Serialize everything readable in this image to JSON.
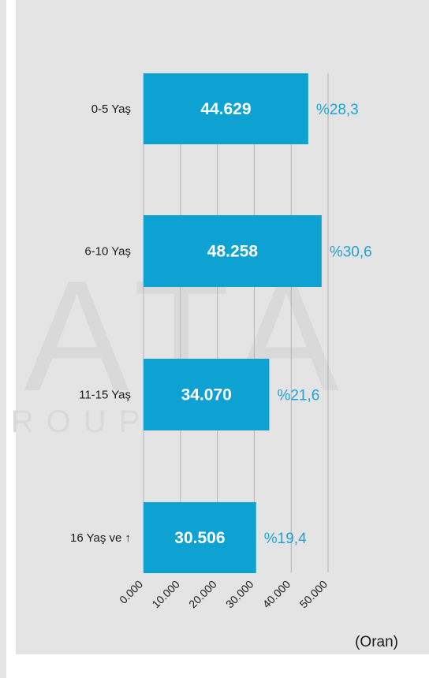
{
  "watermark": {
    "text_main": "ATA",
    "text_sub": "GROUP"
  },
  "colors": {
    "bar": "#0ea2d3",
    "percent_text": "#21a3d6",
    "grid": "#b4b4b4",
    "background": "#e4e4e4"
  },
  "chart_data": {
    "type": "bar",
    "orientation": "horizontal",
    "title": "",
    "xlabel": "(Oran)",
    "ylabel": "",
    "categories": [
      "0-5 Yaş",
      "6-10 Yaş",
      "11-15 Yaş",
      "16 Yaş ve ↑"
    ],
    "values": [
      44629,
      48258,
      34070,
      30506
    ],
    "value_labels": [
      "44.629",
      "48.258",
      "34.070",
      "30.506"
    ],
    "percent_labels": [
      "%28,3",
      "%30,6",
      "%21,6",
      "%19,4"
    ],
    "xlim": [
      0,
      50000
    ],
    "x_ticks": [
      0,
      10000,
      20000,
      30000,
      40000,
      50000
    ],
    "x_tick_labels": [
      "0.000",
      "10.000",
      "20.000",
      "30.000",
      "40.000",
      "50.000"
    ],
    "grid": true
  }
}
